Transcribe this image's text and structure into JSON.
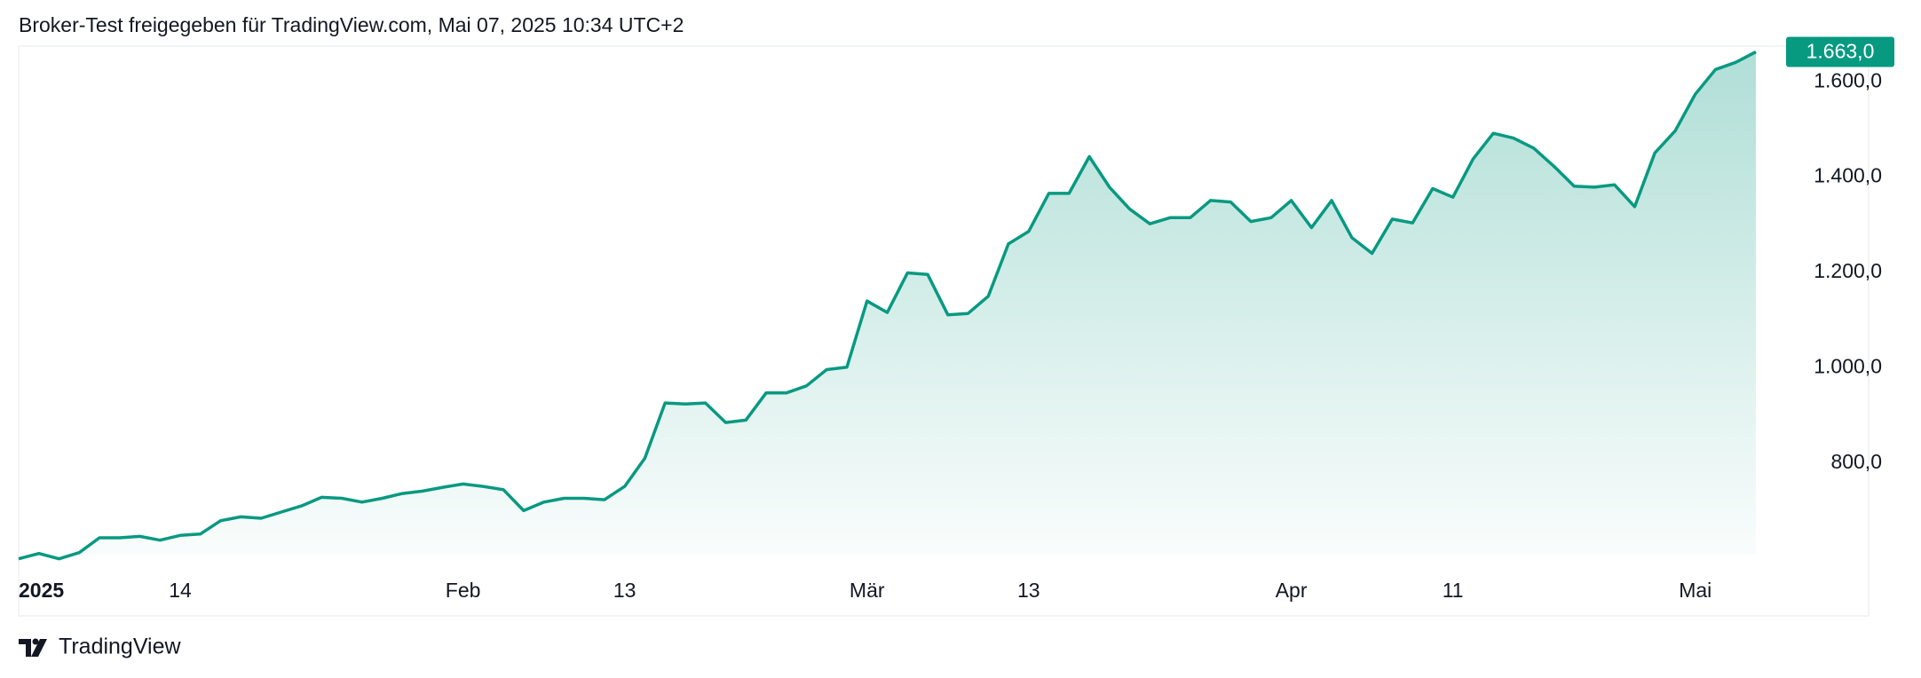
{
  "chart_data": {
    "type": "area",
    "title": "Broker-Test freigegeben für TradingView.com, Mai 07, 2025 10:34 UTC+2",
    "brand": "TradingView",
    "color": "#089981",
    "categories": [
      "2025",
      null,
      null,
      null,
      null,
      null,
      null,
      null,
      "14",
      null,
      null,
      null,
      null,
      null,
      null,
      null,
      null,
      null,
      null,
      null,
      null,
      null,
      "Feb",
      null,
      null,
      null,
      null,
      null,
      null,
      null,
      "13",
      null,
      null,
      null,
      null,
      null,
      null,
      null,
      null,
      null,
      null,
      null,
      "Mär",
      null,
      null,
      null,
      null,
      null,
      null,
      null,
      "13",
      null,
      null,
      null,
      null,
      null,
      null,
      null,
      null,
      null,
      null,
      null,
      null,
      "Apr",
      null,
      null,
      null,
      null,
      null,
      null,
      null,
      "11",
      null,
      null,
      null,
      null,
      null,
      null,
      null,
      null,
      null,
      null,
      null,
      "Mai",
      null,
      null,
      null
    ],
    "values": [
      599,
      610,
      599,
      612,
      643,
      643,
      646,
      638,
      648,
      651,
      679,
      687,
      684,
      697,
      710,
      728,
      726,
      718,
      726,
      736,
      741,
      749,
      756,
      751,
      744,
      700,
      718,
      726,
      726,
      723,
      751,
      810,
      926,
      924,
      926,
      885,
      890,
      947,
      947,
      962,
      996,
      1001,
      1140,
      1116,
      1199,
      1196,
      1111,
      1114,
      1150,
      1260,
      1286,
      1366,
      1366,
      1443,
      1379,
      1333,
      1302,
      1315,
      1315,
      1351,
      1348,
      1307,
      1315,
      1351,
      1294,
      1351,
      1273,
      1240,
      1312,
      1304,
      1376,
      1358,
      1438,
      1492,
      1482,
      1461,
      1423,
      1381,
      1379,
      1384,
      1338,
      1451,
      1497,
      1574,
      1626,
      1641,
      1663
    ],
    "value_labels": [
      null,
      null,
      null,
      null,
      null,
      null,
      null,
      null,
      null,
      null,
      null,
      null,
      null,
      null,
      null,
      null,
      null,
      null,
      null,
      null,
      null,
      null,
      null,
      null,
      null,
      null,
      null,
      null,
      null,
      null,
      null,
      null,
      null,
      null,
      null,
      null,
      null,
      null,
      null,
      null,
      null,
      null,
      null,
      null,
      null,
      null,
      null,
      null,
      null,
      null,
      null,
      null,
      null,
      null,
      null,
      null,
      null,
      null,
      null,
      null,
      null,
      null,
      null,
      null,
      null,
      null,
      null,
      null,
      null,
      null,
      null,
      null,
      null,
      null,
      null,
      null,
      null,
      null,
      null,
      null,
      null,
      null,
      null,
      null,
      null,
      null,
      "1.663,0"
    ],
    "ylim": [
      576,
      1675
    ],
    "yticks": [
      {
        "value": 800,
        "label": "800,0"
      },
      {
        "value": 1000,
        "label": "1.000,0"
      },
      {
        "value": 1200,
        "label": "1.200,0"
      },
      {
        "value": 1400,
        "label": "1.400,0"
      },
      {
        "value": 1600,
        "label": "1.600,0"
      }
    ]
  }
}
